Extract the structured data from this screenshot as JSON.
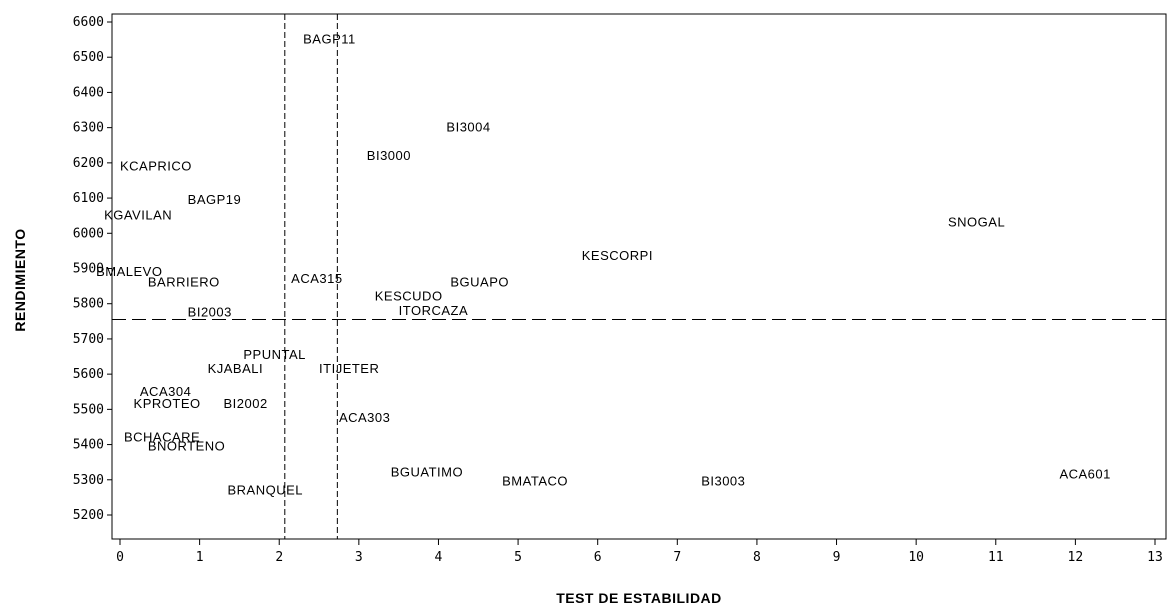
{
  "chart_data": {
    "type": "scatter",
    "title": "",
    "xlabel": "TEST DE ESTABILIDAD",
    "ylabel": "RENDIMIENTO",
    "xlim": [
      0,
      13
    ],
    "ylim": [
      5200,
      6600
    ],
    "x_ticks": [
      0,
      1,
      2,
      3,
      4,
      5,
      6,
      7,
      8,
      9,
      10,
      11,
      12,
      13
    ],
    "y_ticks": [
      5200,
      5300,
      5400,
      5500,
      5600,
      5700,
      5800,
      5900,
      6000,
      6100,
      6200,
      6300,
      6400,
      6500,
      6600
    ],
    "grid": false,
    "legend": "none",
    "reference_lines": {
      "vertical": [
        2.07,
        2.73
      ],
      "horizontal": [
        5755
      ]
    },
    "points": [
      {
        "label": "BAGP11",
        "x": 2.3,
        "y": 6550
      },
      {
        "label": "BI3004",
        "x": 4.1,
        "y": 6300
      },
      {
        "label": "BI3000",
        "x": 3.1,
        "y": 6220
      },
      {
        "label": "KCAPRICO",
        "x": 0.0,
        "y": 6190
      },
      {
        "label": "BAGP19",
        "x": 0.85,
        "y": 6095
      },
      {
        "label": "KGAVILAN",
        "x": -0.2,
        "y": 6050
      },
      {
        "label": "SNOGAL",
        "x": 10.4,
        "y": 6030
      },
      {
        "label": "KESCORPI",
        "x": 5.8,
        "y": 5935
      },
      {
        "label": "BMALEVO",
        "x": -0.3,
        "y": 5890
      },
      {
        "label": "BARRIERO",
        "x": 0.35,
        "y": 5860
      },
      {
        "label": "ACA315",
        "x": 2.15,
        "y": 5870
      },
      {
        "label": "BGUAPO",
        "x": 4.15,
        "y": 5860
      },
      {
        "label": "KESCUDO",
        "x": 3.2,
        "y": 5820
      },
      {
        "label": "BI2003",
        "x": 0.85,
        "y": 5775
      },
      {
        "label": "ITORCAZA",
        "x": 3.5,
        "y": 5780
      },
      {
        "label": "PPUNTAL",
        "x": 1.55,
        "y": 5655
      },
      {
        "label": "KJABALI",
        "x": 1.1,
        "y": 5615
      },
      {
        "label": "ITIJETER",
        "x": 2.5,
        "y": 5615
      },
      {
        "label": "ACA304",
        "x": 0.25,
        "y": 5550
      },
      {
        "label": "KPROTEO",
        "x": 0.17,
        "y": 5515
      },
      {
        "label": "BI2002",
        "x": 1.3,
        "y": 5515
      },
      {
        "label": "ACA303",
        "x": 2.75,
        "y": 5475
      },
      {
        "label": "BCHACARE",
        "x": 0.05,
        "y": 5420
      },
      {
        "label": "BNORTENO",
        "x": 0.35,
        "y": 5395
      },
      {
        "label": "BGUATIMO",
        "x": 3.4,
        "y": 5320
      },
      {
        "label": "BMATACO",
        "x": 4.8,
        "y": 5295
      },
      {
        "label": "BI3003",
        "x": 7.3,
        "y": 5295
      },
      {
        "label": "ACA601",
        "x": 11.8,
        "y": 5315
      },
      {
        "label": "BRANQUEL",
        "x": 1.35,
        "y": 5270
      }
    ]
  }
}
